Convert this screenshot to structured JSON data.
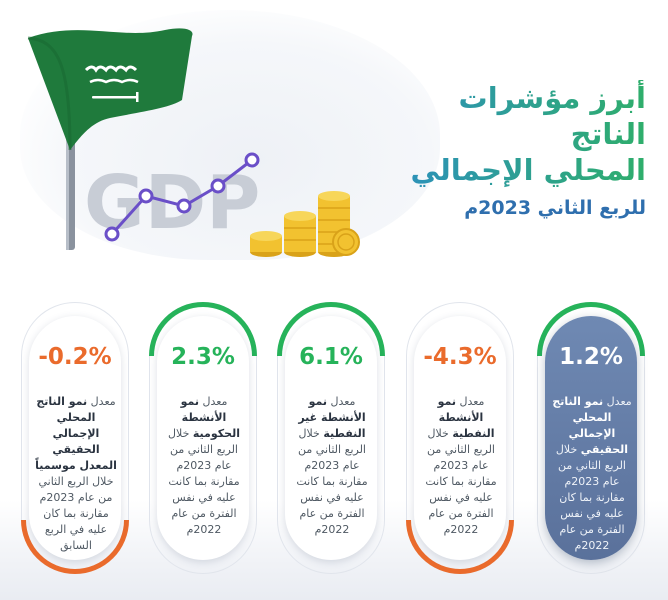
{
  "title": {
    "line1": "أبرز مؤشرات الناتج",
    "line2": "المحلي الإجمالي",
    "subtitle": "للربع الثاني 2023م"
  },
  "hero": {
    "gdp_text": "GDP",
    "flag_emblem": "saudi-flag-emblem",
    "colors": {
      "flag_green": "#1f7a3c",
      "gdp_letters": "#c8cdd6",
      "trend_line": "#6a4fc8",
      "coin_gold": "#f2c230"
    }
  },
  "colors": {
    "positive": "#26b35a",
    "negative": "#ea6b2c",
    "featured_card": "#6a82ad",
    "title_gradient_start": "#2c8fbf",
    "title_gradient_end": "#2fae6b"
  },
  "cards": [
    {
      "value": "1.2%",
      "trend": "positive",
      "featured": true,
      "prefix": "معدل",
      "bold": "نمو الناتج المحلي الإجمالي الحقيقي",
      "rest": "خلال الربع الثاني من عام 2023م مقارنة بما كان عليه في نفس الفترة من عام 2022م"
    },
    {
      "value": "-4.3%",
      "trend": "negative",
      "featured": false,
      "prefix": "معدل",
      "bold": "نمو الأنشطة النفطية",
      "rest": "خلال الربع الثاني من عام 2023م مقارنة بما كانت عليه في نفس الفترة من عام 2022م"
    },
    {
      "value": "6.1%",
      "trend": "positive",
      "featured": false,
      "prefix": "معدل",
      "bold": "نمو الأنشطة غير النفطية",
      "rest": "خلال الربع الثاني من عام 2023م مقارنة بما كانت عليه في نفس الفترة من عام 2022م"
    },
    {
      "value": "2.3%",
      "trend": "positive",
      "featured": false,
      "prefix": "معدل",
      "bold": "نمو الأنشطة الحكومية",
      "rest": "خلال الربع الثاني من عام 2023م مقارنة بما كانت عليه في نفس الفترة من عام 2022م"
    },
    {
      "value": "-0.2%",
      "trend": "negative",
      "featured": false,
      "prefix": "معدل",
      "bold": "نمو الناتج المحلي الإجمالي الحقيقي المعدل موسمياً",
      "rest": "خلال الربع الثاني من عام 2023م مقارنة بما كان عليه في الربع السابق"
    }
  ]
}
